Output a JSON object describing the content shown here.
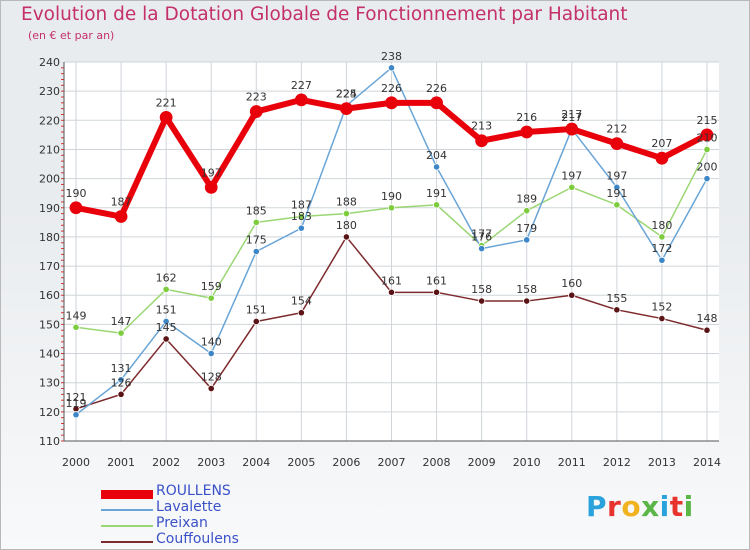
{
  "title": "Evolution de la Dotation Globale de Fonctionnement par Habitant",
  "subtitle": "(en € et par an)",
  "brand": {
    "logo_text": "Proxiti",
    "letter_colors": [
      "#2aa3dd",
      "#e8342e",
      "#f1b21f",
      "#5bb648",
      "#2aa3dd",
      "#e8342e",
      "#5bb648"
    ]
  },
  "chart_data": {
    "type": "line",
    "title": "Evolution de la Dotation Globale de Fonctionnement par Habitant",
    "subtitle": "(en € et par an)",
    "xlabel": "",
    "ylabel": "",
    "ylim": [
      110,
      240
    ],
    "yticks": [
      110,
      120,
      130,
      140,
      150,
      160,
      170,
      180,
      190,
      200,
      210,
      220,
      230,
      240
    ],
    "grid": true,
    "legend_position": "bottom-left",
    "categories": [
      "2000",
      "2001",
      "2002",
      "2003",
      "2004",
      "2005",
      "2006",
      "2007",
      "2008",
      "2009",
      "2010",
      "2011",
      "2012",
      "2013",
      "2014"
    ],
    "series": [
      {
        "name": "ROULLENS",
        "color": "#e8000b",
        "values": [
          190,
          187,
          221,
          197,
          223,
          227,
          224,
          226,
          226,
          213,
          216,
          217,
          212,
          207,
          215
        ]
      },
      {
        "name": "Lavalette",
        "color": "#6aa5d6",
        "values": [
          119,
          131,
          151,
          140,
          175,
          183,
          225,
          238,
          204,
          176,
          179,
          217,
          197,
          172,
          200
        ]
      },
      {
        "name": "Preixan",
        "color": "#9ad673",
        "values": [
          149,
          147,
          162,
          159,
          185,
          187,
          188,
          190,
          191,
          177,
          189,
          197,
          191,
          180,
          210
        ]
      },
      {
        "name": "Couffoulens",
        "color": "#7d2a2d",
        "values": [
          121,
          126,
          145,
          128,
          151,
          154,
          180,
          161,
          161,
          158,
          158,
          160,
          155,
          152,
          148
        ]
      }
    ],
    "value_labels": {
      "ROULLENS": [
        "190",
        "187",
        "221",
        "197",
        "223",
        "227",
        "224",
        "226",
        "226",
        "213",
        "216",
        "217",
        "212",
        "207",
        "215"
      ],
      "Lavalette": [
        "119",
        "131",
        "151",
        "140",
        "175",
        "183",
        "225",
        "238",
        "204",
        "176",
        "179",
        "217",
        "197",
        "172",
        "200"
      ],
      "Preixan": [
        "149",
        "147",
        "162",
        "159",
        "185",
        "187",
        "188",
        "190",
        "191",
        "177",
        "189",
        "197",
        "191",
        "180",
        "210"
      ],
      "Couffoulens": [
        "121",
        "126",
        "145",
        "128",
        "151",
        "154",
        "180",
        "161",
        "161",
        "158",
        "158",
        "160",
        "155",
        "152",
        "148"
      ]
    }
  }
}
